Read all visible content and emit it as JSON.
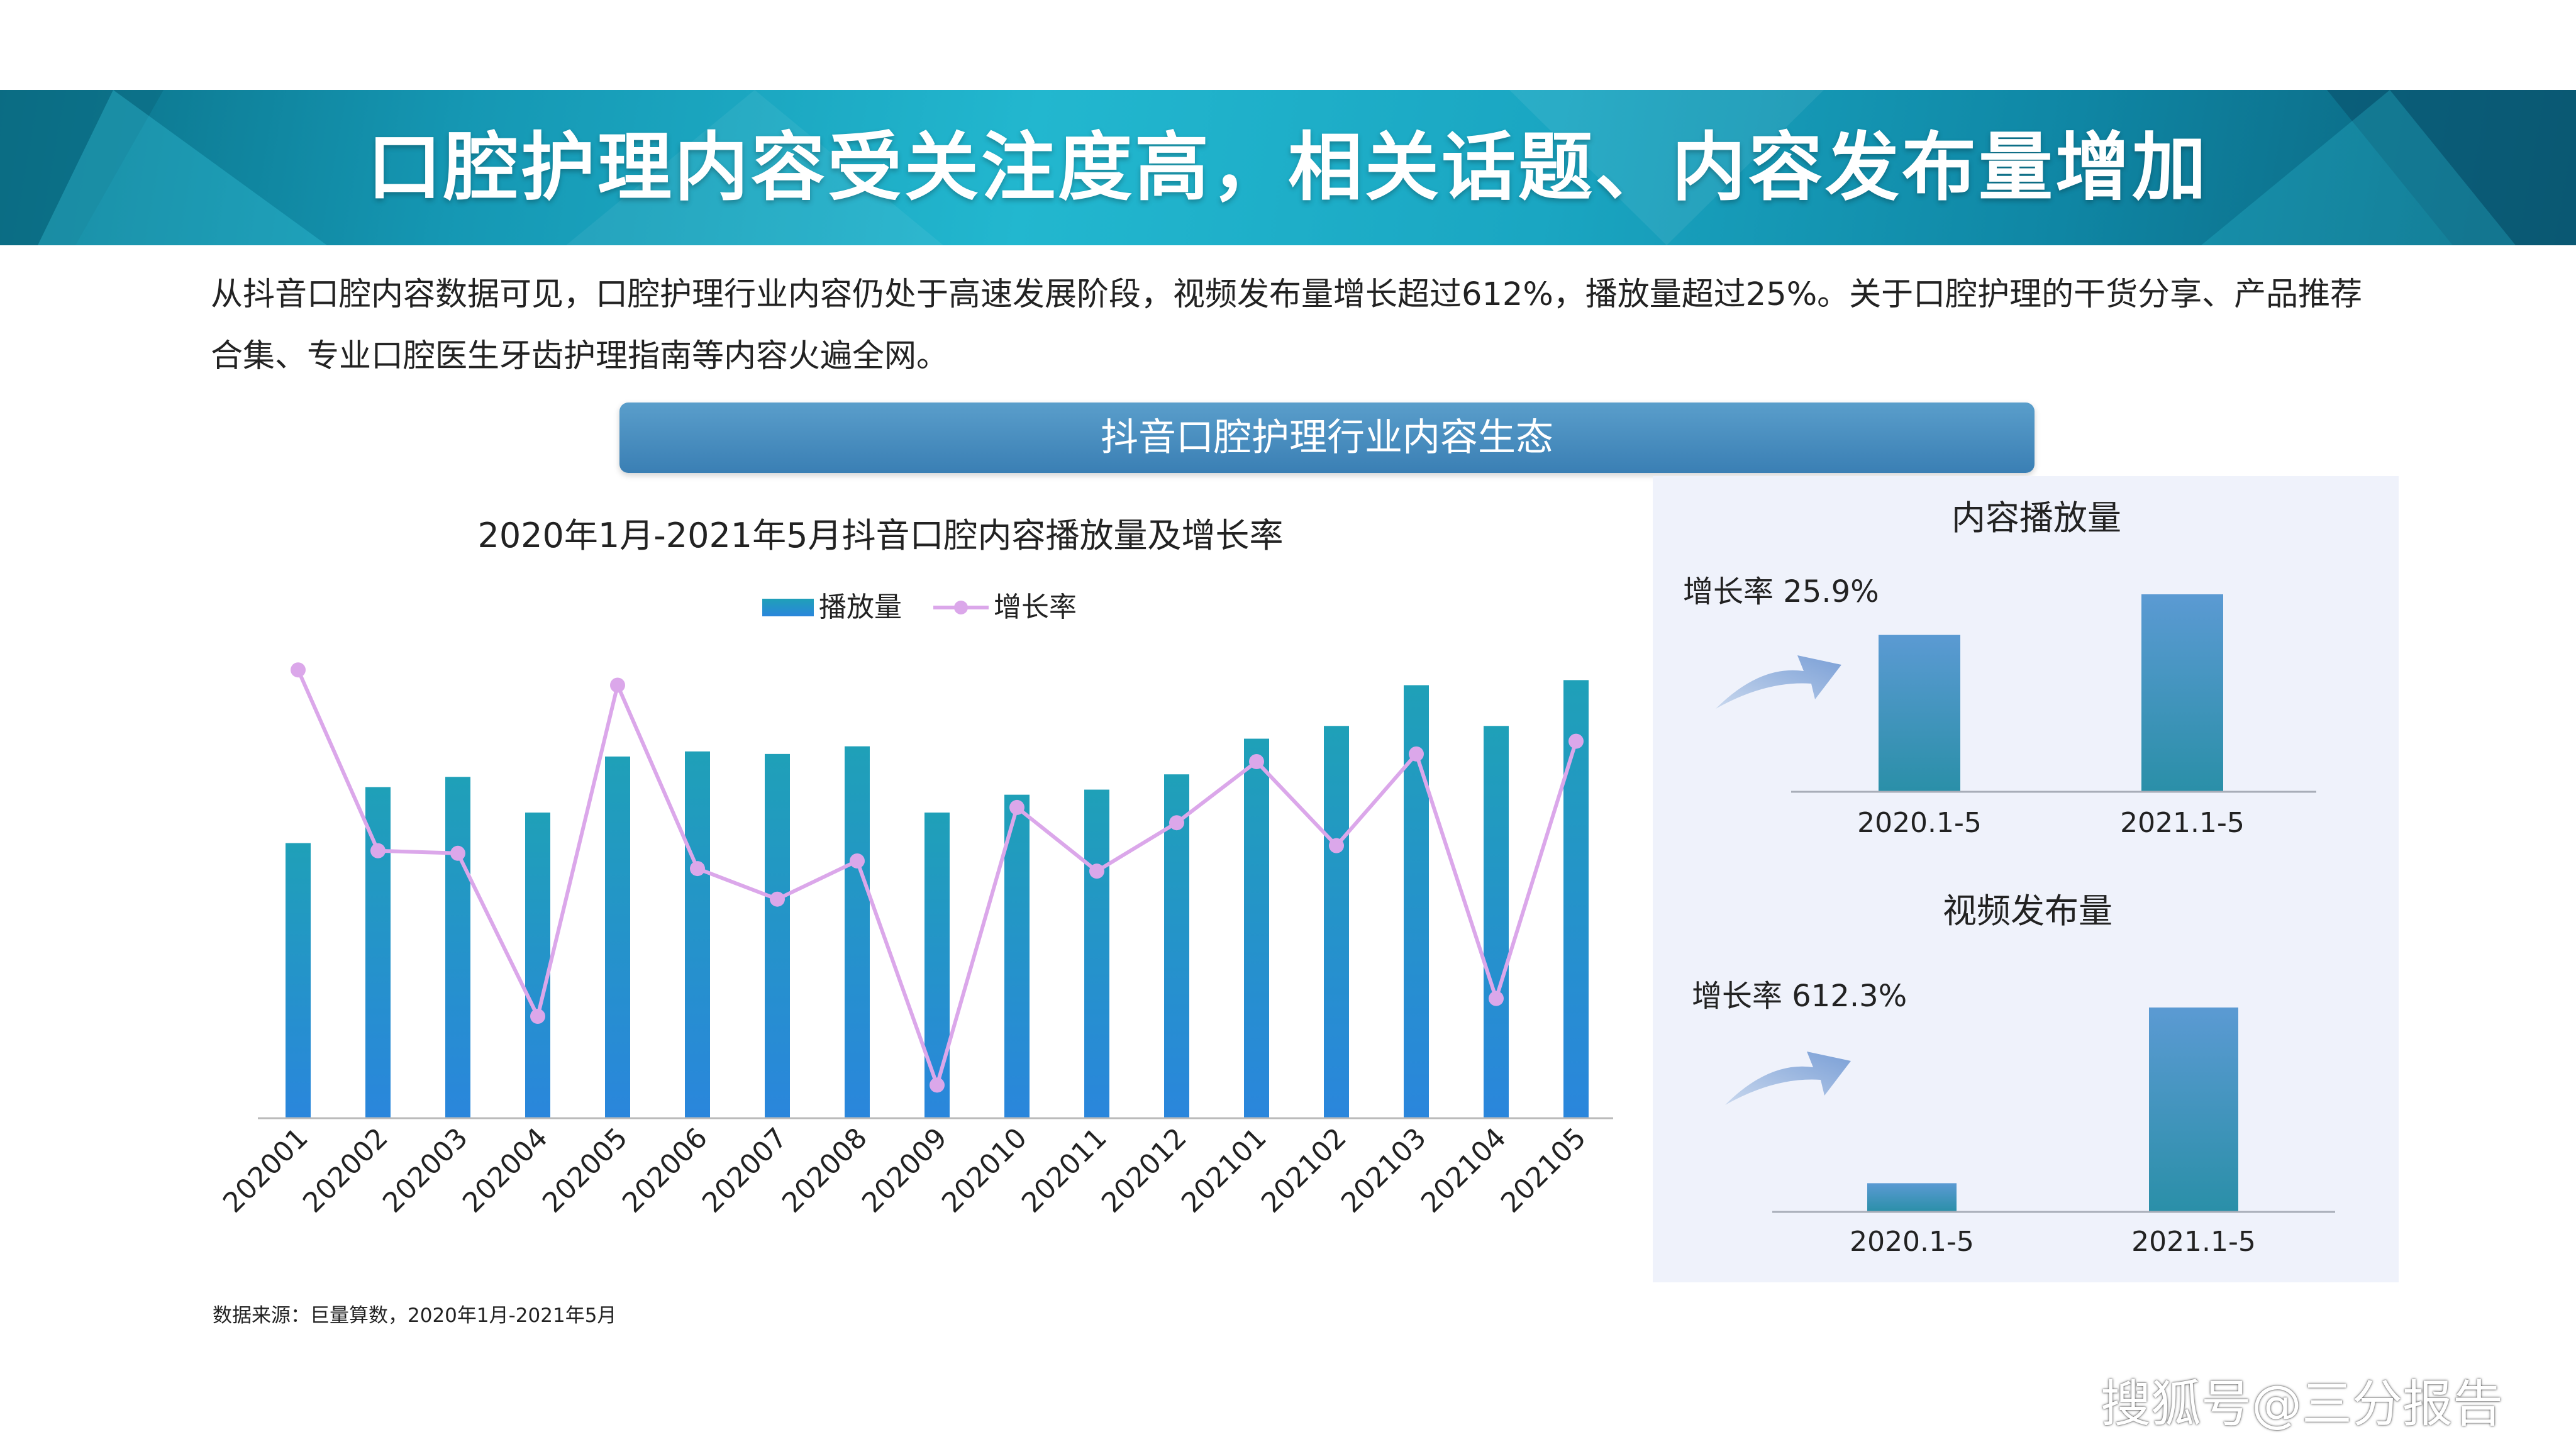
{
  "banner": {
    "title": "口腔护理内容受关注度高，相关话题、内容发布量增加"
  },
  "intro": {
    "text": "从抖音口腔内容数据可见，口腔护理行业内容仍处于高速发展阶段，视频发布量增长超过612%，播放量超过25%。关于口腔护理的干货分享、产品推荐合集、专业口腔医生牙齿护理指南等内容火遍全网。"
  },
  "section": {
    "label": "抖音口腔护理行业内容生态"
  },
  "colors": {
    "bar": "#2a8fd0",
    "bar_top": "#1fa0b8",
    "line": "#dba7ea",
    "small_bar": "#3f9dc2",
    "panel_bg": "#eff2fb"
  },
  "chart_data": [
    {
      "type": "bar+line",
      "title": "2020年1月-2021年5月抖音口腔内容播放量及增长率",
      "categories": [
        "202001",
        "202002",
        "202003",
        "202004",
        "202005",
        "202006",
        "202007",
        "202008",
        "202009",
        "202010",
        "202011",
        "202012",
        "202101",
        "202102",
        "202103",
        "202104",
        "202105"
      ],
      "series": [
        {
          "name": "播放量",
          "type": "bar",
          "values": [
            54,
            65,
            67,
            60,
            71,
            72,
            71.5,
            73,
            60,
            63.5,
            64.5,
            67.5,
            74.5,
            77,
            85,
            77,
            86
          ]
        },
        {
          "name": "增长率",
          "type": "line",
          "values": [
            88,
            52.5,
            52,
            20,
            85,
            49,
            43,
            50.5,
            6.5,
            61,
            48.5,
            58,
            70,
            53.5,
            71.5,
            23.5,
            74
          ]
        }
      ],
      "legend": "top-center",
      "grid": false,
      "ylim": [
        0,
        100
      ]
    },
    {
      "type": "bar",
      "title": "内容播放量",
      "annotation": "增长率 25.9%",
      "categories": [
        "2020.1-5",
        "2021.1-5"
      ],
      "values": [
        100,
        125.9
      ]
    },
    {
      "type": "bar",
      "title": "视频发布量",
      "annotation": "增长率 612.3%",
      "categories": [
        "2020.1-5",
        "2021.1-5"
      ],
      "values": [
        100,
        712.3
      ]
    }
  ],
  "source": "数据来源：巨量算数，2020年1月-2021年5月",
  "watermark": "搜狐号@三分报告"
}
